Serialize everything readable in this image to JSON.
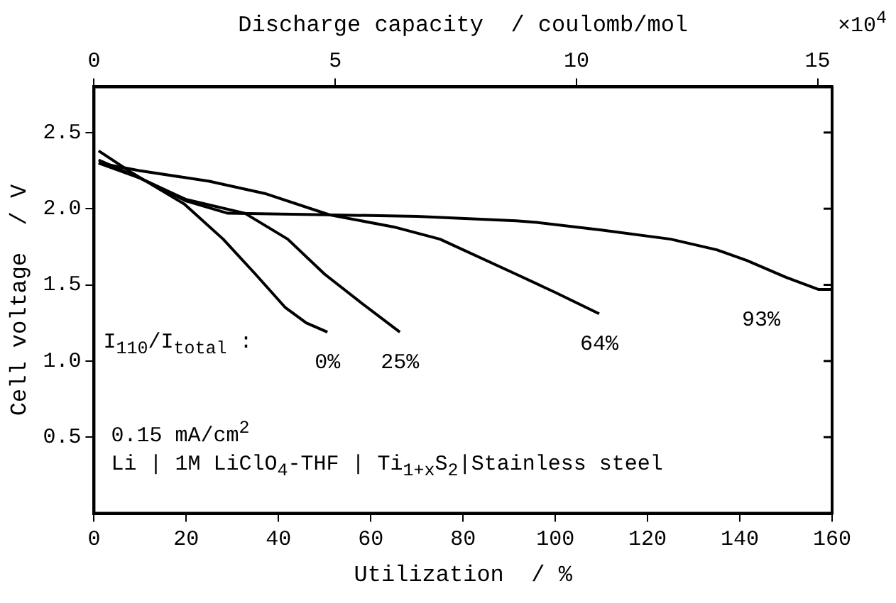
{
  "chart_data": {
    "type": "line",
    "xlabel": "Utilization  / %",
    "ylabel": "Cell voltage  / V",
    "x2label": "Discharge capacity  / coulomb/mol",
    "xlim": [
      0,
      160
    ],
    "xticks": [
      0,
      20,
      40,
      60,
      80,
      100,
      120,
      140,
      160
    ],
    "x2lim": [
      0,
      15.3
    ],
    "x2ticks": [
      0,
      5,
      10,
      15
    ],
    "ylim": [
      0,
      2.8
    ],
    "yticks": [
      0.5,
      {
        "value": 1,
        "label": "1.0"
      },
      1.5,
      {
        "value": 2,
        "label": "2.0"
      },
      2.5
    ],
    "grid": false,
    "legend": false,
    "marker": "none",
    "line_style": "solid",
    "series": [
      {
        "name": "0%",
        "color": "#000000",
        "x": [
          1,
          8,
          19.6,
          28,
          35,
          41.5,
          46,
          50.6
        ],
        "values": [
          2.38,
          2.24,
          2.03,
          1.8,
          1.57,
          1.35,
          1.25,
          1.19
        ]
      },
      {
        "name": "25%",
        "color": "#000000",
        "x": [
          1,
          10,
          20,
          32.7,
          42,
          50,
          58,
          66.3
        ],
        "values": [
          2.32,
          2.2,
          2.06,
          1.97,
          1.8,
          1.57,
          1.38,
          1.19
        ]
      },
      {
        "name": "64%",
        "color": "#000000",
        "x": [
          1,
          9.8,
          25,
          37,
          51,
          65,
          75,
          91.5,
          100,
          109.5
        ],
        "values": [
          2.3,
          2.25,
          2.18,
          2.1,
          1.96,
          1.88,
          1.8,
          1.57,
          1.45,
          1.31
        ]
      },
      {
        "name": "93%",
        "color": "#000000",
        "x": [
          1,
          10,
          20,
          29,
          50,
          70,
          91.5,
          96,
          110,
          125,
          135,
          141.5,
          150,
          157,
          160
        ],
        "values": [
          2.3,
          2.2,
          2.05,
          1.97,
          1.96,
          1.95,
          1.92,
          1.91,
          1.86,
          1.8,
          1.73,
          1.66,
          1.55,
          1.47,
          1.47
        ]
      }
    ],
    "annotations": [
      "I$_{110}$/I$_{total}$ :",
      "×10$^{4}$",
      "0.15 mA/cm$^{2}$",
      "Li | 1M LiClO$_{4}$-THF | Ti$_{1+x}$S$_{2}$|Stainless steel"
    ]
  }
}
